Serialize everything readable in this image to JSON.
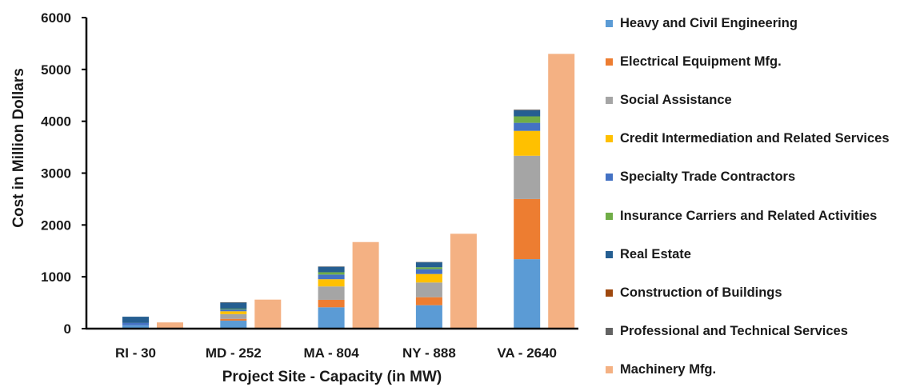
{
  "chart_data": {
    "type": "bar",
    "stacked": true,
    "title": "",
    "xlabel": "Project Site - Capacity (in MW)",
    "ylabel": "Cost in Million Dollars",
    "ylim": [
      0,
      6000
    ],
    "yticks": [
      0,
      1000,
      2000,
      3000,
      4000,
      5000,
      6000
    ],
    "grid": false,
    "legend_position": "right",
    "categories": [
      "RI - 30",
      "MD - 252",
      "MA - 804",
      "NY - 888",
      "VA - 2640"
    ],
    "stacked_series": [
      {
        "name": "Heavy and Civil Engineering",
        "color": "#5B9BD5",
        "values": [
          65,
          155,
          412,
          452,
          1340
        ]
      },
      {
        "name": "Electrical Equipment Mfg.",
        "color": "#ED7D31",
        "values": [
          0,
          35,
          144,
          154,
          1160
        ]
      },
      {
        "name": "Social Assistance",
        "color": "#A5A5A5",
        "values": [
          0,
          90,
          258,
          284,
          835
        ]
      },
      {
        "name": "Credit Intermediation and Related Services",
        "color": "#FFC000",
        "values": [
          0,
          55,
          139,
          164,
          480
        ]
      },
      {
        "name": "Specialty Trade Contractors",
        "color": "#4472C4",
        "values": [
          45,
          35,
          90,
          93,
          155
        ]
      },
      {
        "name": "Insurance Carriers and Related Activities",
        "color": "#70AD47",
        "values": [
          0,
          15,
          45,
          37,
          125
        ]
      },
      {
        "name": "Real Estate",
        "color": "#255E91",
        "values": [
          120,
          115,
          105,
          95,
          115
        ]
      },
      {
        "name": "Construction of Buildings",
        "color": "#9E480E",
        "values": [
          0,
          0,
          0,
          0,
          0
        ]
      },
      {
        "name": "Professional and Technical Services",
        "color": "#636363",
        "values": [
          0,
          10,
          7,
          7,
          15
        ]
      }
    ],
    "separate_series": [
      {
        "name": "Machinery Mfg.",
        "color": "#F4B183",
        "values": [
          120,
          560,
          1670,
          1830,
          5300
        ]
      }
    ]
  }
}
